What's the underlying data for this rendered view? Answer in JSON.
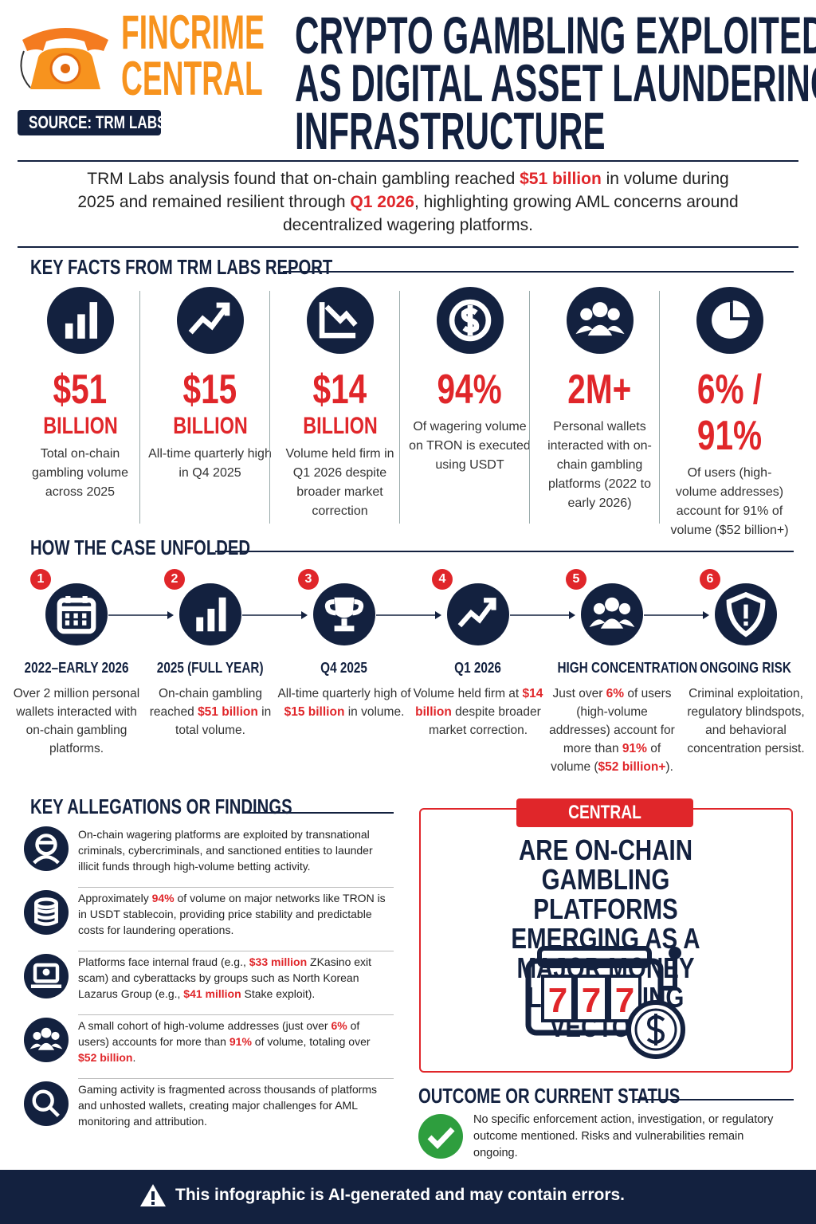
{
  "header": {
    "brand_line1": "FINCRIME",
    "brand_line2": "CENTRAL",
    "source": "SOURCE: TRM LABS",
    "title_lines": [
      "CRYPTO GAMBLING EXPLOITED",
      "AS DIGITAL ASSET LAUNDERING",
      "INFRASTRUCTURE"
    ]
  },
  "lede": [
    "TRM Labs analysis found that on-chain gambling reached ",
    "$51 billion",
    " in volume during 2025 and remained resilient through ",
    "Q1 2026",
    ", highlighting growing AML concerns around decentralized wagering platforms."
  ],
  "key_facts": {
    "heading": "KEY FACTS FROM TRM LABS REPORT",
    "items": [
      {
        "value": "$51",
        "unit": "BILLION",
        "text": "Total on-chain gambling volume across 2025"
      },
      {
        "value": "$15",
        "unit": "BILLION",
        "text": "All-time quarterly high in Q4 2025"
      },
      {
        "value": "$14",
        "unit": "BILLION",
        "text": "Volume held firm in Q1 2026 despite broader market correction"
      },
      {
        "value": "94%",
        "text": "Of wagering volume on TRON is executed using USDT"
      },
      {
        "value": "2M+",
        "text": "Personal wallets interacted with on-chain gambling platforms (2022 to early 2026)"
      },
      {
        "value": "6% / 91%",
        "text": "Of users (high-volume addresses) account for 91% of volume ($52 billion+)"
      }
    ]
  },
  "timeline": {
    "heading": "HOW THE CASE UNFOLDED",
    "steps": [
      {
        "number": "1",
        "title": "2022–EARLY 2026",
        "text": [
          "Over 2 million personal wallets interacted with on-chain gambling platforms."
        ]
      },
      {
        "number": "2",
        "title": "2025 (FULL YEAR)",
        "text": [
          "On-chain gambling reached ",
          "$51 billion",
          " in total volume."
        ]
      },
      {
        "number": "3",
        "title": "Q4 2025",
        "text": [
          "All-time quarterly high of ",
          "$15 billion",
          " in volume."
        ]
      },
      {
        "number": "4",
        "title": "Q1 2026",
        "text": [
          "Volume held firm at ",
          "$14 billion",
          " despite broader market correction."
        ]
      },
      {
        "number": "5",
        "title": "HIGH CONCENTRATION",
        "text": [
          "Just over ",
          "6%",
          " of users (high-volume addresses) account for more than ",
          "91%",
          " of volume (",
          "$52 billion+",
          ")."
        ]
      },
      {
        "number": "6",
        "title": "ONGOING RISK",
        "text": [
          "Criminal exploitation, regulatory blindspots, and behavioral concentration persist."
        ]
      }
    ]
  },
  "findings": {
    "heading": "KEY ALLEGATIONS OR FINDINGS",
    "items": [
      [
        "On-chain wagering platforms are exploited by transnational criminals, cybercriminals, and sanctioned entities to launder illicit funds through high-volume betting activity."
      ],
      [
        "Approximately ",
        "94%",
        " of volume on major networks like TRON is in USDT stablecoin, providing price stability and predictable costs for laundering operations."
      ],
      [
        "Platforms face internal fraud (e.g., ",
        "$33 million",
        " ZKasino exit scam) and cyberattacks by groups such as North Korean Lazarus Group (e.g., ",
        "$41 million",
        " Stake exploit)."
      ],
      [
        "A small cohort of high-volume addresses (just over ",
        "6%",
        " of users) accounts for more than ",
        "91%",
        " of volume, totaling over ",
        "$52 billion",
        "."
      ],
      [
        "Gaming activity is fragmented across thousands of platforms and unhosted wallets, creating major challenges for AML monitoring and attribution."
      ]
    ]
  },
  "central_question": {
    "label": "CENTRAL QUESTION",
    "question": "ARE ON-CHAIN GAMBLING PLATFORMS EMERGING AS A MAJOR MONEY LAUNDERING VECTOR?",
    "reels": [
      "7",
      "7",
      "7"
    ]
  },
  "outcome": {
    "heading": "OUTCOME OR CURRENT STATUS",
    "text": "No specific enforcement action, investigation, or regulatory outcome mentioned. Risks and vulnerabilities remain ongoing."
  },
  "footer": {
    "text": "This infographic is AI-generated and may contain errors."
  }
}
